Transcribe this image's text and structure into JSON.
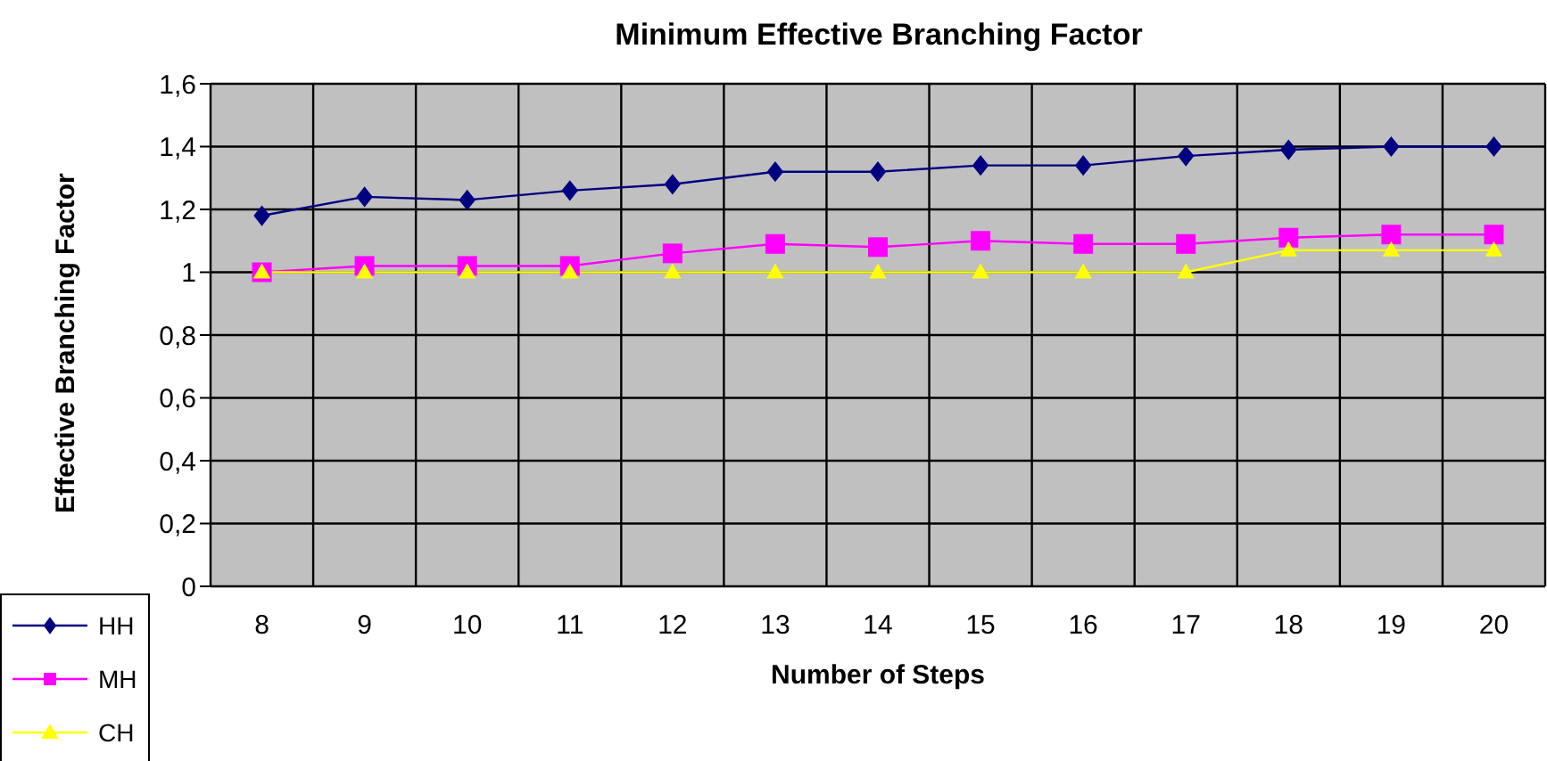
{
  "chart_data": {
    "type": "line",
    "title": "Minimum Effective Branching Factor",
    "xlabel": "Number of Steps",
    "ylabel": "Effective Branching Factor",
    "categories": [
      "8",
      "9",
      "10",
      "11",
      "12",
      "13",
      "14",
      "15",
      "16",
      "17",
      "18",
      "19",
      "20"
    ],
    "series": [
      {
        "name": "HH",
        "color": "#000080",
        "marker": "diamond",
        "values": [
          1.18,
          1.24,
          1.23,
          1.26,
          1.28,
          1.32,
          1.32,
          1.34,
          1.34,
          1.37,
          1.39,
          1.4,
          1.4
        ]
      },
      {
        "name": "MH",
        "color": "#ff00ff",
        "marker": "square",
        "values": [
          1.0,
          1.02,
          1.02,
          1.02,
          1.06,
          1.09,
          1.08,
          1.1,
          1.09,
          1.09,
          1.11,
          1.12,
          1.12
        ]
      },
      {
        "name": "CH",
        "color": "#ffff00",
        "marker": "triangle",
        "values": [
          1.0,
          1.0,
          1.0,
          1.0,
          1.0,
          1.0,
          1.0,
          1.0,
          1.0,
          1.0,
          1.07,
          1.07,
          1.07
        ]
      }
    ],
    "ylim": [
      0,
      1.6
    ],
    "yticks": [
      0,
      {
        "value": 0.2,
        "label": "0,2"
      },
      {
        "value": 0.4,
        "label": "0,4"
      },
      {
        "value": 0.6,
        "label": "0,6"
      },
      {
        "value": 0.8,
        "label": "0,8"
      },
      1,
      {
        "value": 1.2,
        "label": "1,2"
      },
      {
        "value": 1.4,
        "label": "1,4"
      },
      {
        "value": 1.6,
        "label": "1,6"
      }
    ],
    "grid": true,
    "legend": "bottom left",
    "line_style": "solid"
  }
}
